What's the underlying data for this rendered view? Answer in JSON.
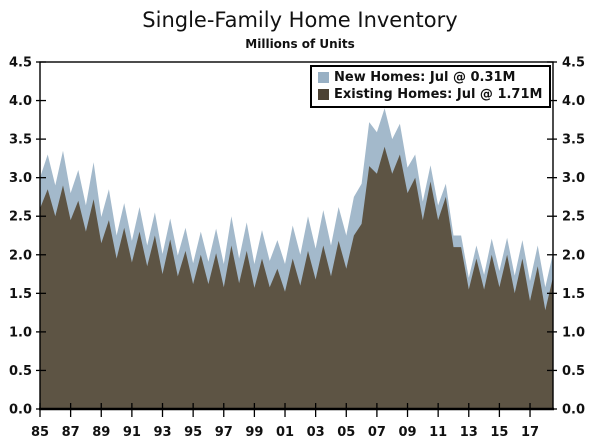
{
  "chart_data": {
    "type": "area",
    "stacked": true,
    "title": "Single-Family Home Inventory",
    "subtitle": "Millions of Units",
    "legend_position": "top-right",
    "grid": false,
    "axis_labels_both_sides": true,
    "xlim": [
      1985,
      2018.5
    ],
    "ylim": [
      0,
      4.5
    ],
    "x": [
      1985,
      1985.5,
      1986,
      1986.5,
      1987,
      1987.5,
      1988,
      1988.5,
      1989,
      1989.5,
      1990,
      1990.5,
      1991,
      1991.5,
      1992,
      1992.5,
      1993,
      1993.5,
      1994,
      1994.5,
      1995,
      1995.5,
      1996,
      1996.5,
      1997,
      1997.5,
      1998,
      1998.5,
      1999,
      1999.5,
      2000,
      2000.5,
      2001,
      2001.5,
      2002,
      2002.5,
      2003,
      2003.5,
      2004,
      2004.5,
      2005,
      2005.5,
      2006,
      2006.5,
      2007,
      2007.5,
      2008,
      2008.5,
      2009,
      2009.5,
      2010,
      2010.5,
      2011,
      2011.5,
      2012,
      2012.5,
      2013,
      2013.5,
      2014,
      2014.5,
      2015,
      2015.5,
      2016,
      2016.5,
      2017,
      2017.5,
      2018,
      2018.5
    ],
    "series": [
      {
        "name": "New Homes",
        "legend_label": "New Homes: Jul @ 0.31M",
        "latest_label": "Jul @ 0.31M",
        "color": "#a3b9cb",
        "swatch_color": "#98b0c4",
        "values": [
          0.4,
          0.45,
          0.4,
          0.45,
          0.35,
          0.4,
          0.34,
          0.48,
          0.34,
          0.4,
          0.3,
          0.32,
          0.28,
          0.32,
          0.27,
          0.3,
          0.26,
          0.27,
          0.27,
          0.3,
          0.27,
          0.3,
          0.29,
          0.32,
          0.3,
          0.38,
          0.32,
          0.37,
          0.31,
          0.37,
          0.34,
          0.37,
          0.36,
          0.43,
          0.4,
          0.45,
          0.4,
          0.46,
          0.4,
          0.44,
          0.43,
          0.5,
          0.52,
          0.57,
          0.54,
          0.5,
          0.45,
          0.4,
          0.33,
          0.3,
          0.24,
          0.21,
          0.19,
          0.17,
          0.15,
          0.15,
          0.15,
          0.17,
          0.19,
          0.21,
          0.21,
          0.22,
          0.23,
          0.24,
          0.26,
          0.27,
          0.3,
          0.31
        ]
      },
      {
        "name": "Existing Homes",
        "legend_label": "Existing Homes: Jul @ 1.71M",
        "latest_label": "Jul @ 1.71M",
        "color": "#5d5444",
        "swatch_color": "#4c4234",
        "values": [
          2.6,
          2.85,
          2.5,
          2.9,
          2.45,
          2.7,
          2.3,
          2.72,
          2.15,
          2.45,
          1.95,
          2.35,
          1.9,
          2.3,
          1.85,
          2.25,
          1.75,
          2.2,
          1.72,
          2.05,
          1.62,
          2.0,
          1.62,
          2.02,
          1.58,
          2.12,
          1.63,
          2.05,
          1.57,
          1.95,
          1.58,
          1.82,
          1.52,
          1.95,
          1.6,
          2.05,
          1.68,
          2.12,
          1.72,
          2.18,
          1.82,
          2.25,
          2.4,
          3.15,
          3.05,
          3.4,
          3.05,
          3.3,
          2.8,
          3.0,
          2.45,
          2.95,
          2.45,
          2.75,
          2.1,
          2.1,
          1.55,
          1.95,
          1.55,
          2.0,
          1.58,
          2.0,
          1.5,
          1.95,
          1.4,
          1.85,
          1.28,
          1.71
        ]
      }
    ],
    "yticks": [
      {
        "value": 0.0,
        "label": "0.0"
      },
      {
        "value": 0.5,
        "label": "0.5"
      },
      {
        "value": 1.0,
        "label": "1.0"
      },
      {
        "value": 1.5,
        "label": "1.5"
      },
      {
        "value": 2.0,
        "label": "2.0"
      },
      {
        "value": 2.5,
        "label": "2.5"
      },
      {
        "value": 3.0,
        "label": "3.0"
      },
      {
        "value": 3.5,
        "label": "3.5"
      },
      {
        "value": 4.0,
        "label": "4.0"
      },
      {
        "value": 4.5,
        "label": "4.5"
      }
    ],
    "xticks": [
      {
        "value": 1985,
        "label": "85"
      },
      {
        "value": 1987,
        "label": "87"
      },
      {
        "value": 1989,
        "label": "89"
      },
      {
        "value": 1991,
        "label": "91"
      },
      {
        "value": 1993,
        "label": "93"
      },
      {
        "value": 1995,
        "label": "95"
      },
      {
        "value": 1997,
        "label": "97"
      },
      {
        "value": 1999,
        "label": "99"
      },
      {
        "value": 2001,
        "label": "01"
      },
      {
        "value": 2003,
        "label": "03"
      },
      {
        "value": 2005,
        "label": "05"
      },
      {
        "value": 2007,
        "label": "07"
      },
      {
        "value": 2009,
        "label": "09"
      },
      {
        "value": 2011,
        "label": "11"
      },
      {
        "value": 2013,
        "label": "13"
      },
      {
        "value": 2015,
        "label": "15"
      },
      {
        "value": 2017,
        "label": "17"
      }
    ]
  }
}
